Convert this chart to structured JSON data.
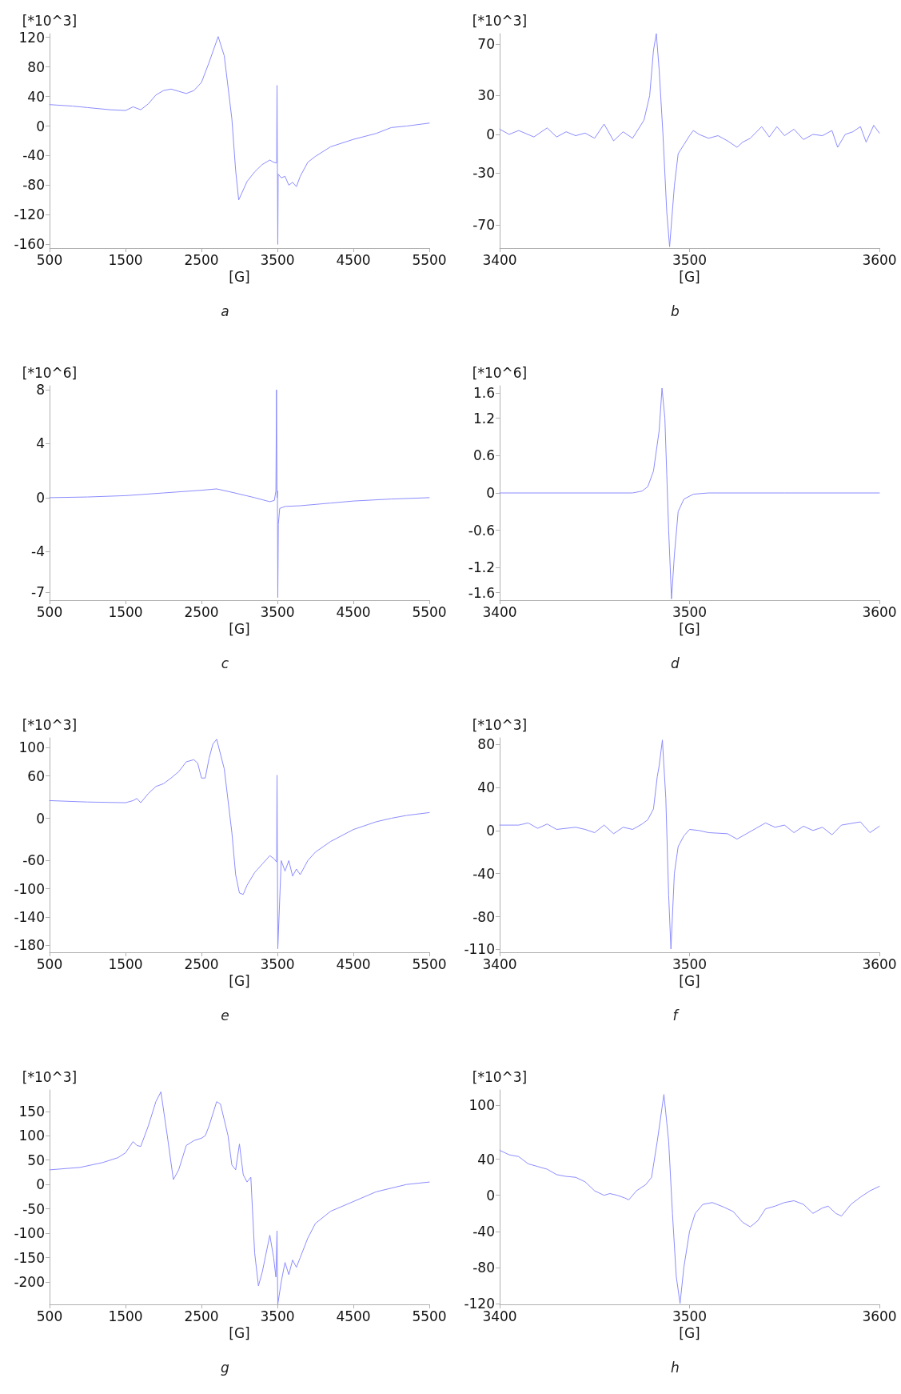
{
  "chart_data": [
    {
      "type": "line",
      "title": "a",
      "xlabel": "[G]",
      "ylabel": "[*10^3]",
      "xlim": [
        500,
        5500
      ],
      "xticks": [
        500,
        1500,
        2500,
        3500,
        4500,
        5500
      ],
      "ylim": [
        -165,
        125
      ],
      "yticks": [
        120,
        80,
        40,
        0,
        -40,
        -80,
        -120,
        -160
      ],
      "grid": false,
      "marker": "none",
      "line_style": "solid",
      "series": [
        {
          "color": "#8c8cff",
          "x": [
            500,
            800,
            1000,
            1300,
            1500,
            1600,
            1700,
            1800,
            1900,
            2000,
            2100,
            2200,
            2300,
            2400,
            2500,
            2600,
            2720,
            2800,
            2900,
            2950,
            2990,
            3100,
            3200,
            3300,
            3400,
            3450,
            3490,
            3495,
            3500,
            3505,
            3510,
            3550,
            3600,
            3650,
            3700,
            3750,
            3800,
            3900,
            4000,
            4200,
            4500,
            4800,
            5000,
            5200,
            5500
          ],
          "values": [
            29,
            27,
            25,
            22,
            21,
            26,
            22,
            30,
            42,
            48,
            50,
            47,
            44,
            48,
            59,
            86,
            121,
            95,
            10,
            -60,
            -100,
            -75,
            -62,
            -52,
            -46,
            -49,
            -50,
            55,
            -60,
            -160,
            -65,
            -70,
            -68,
            -80,
            -76,
            -82,
            -68,
            -49,
            -41,
            -28,
            -18,
            -10,
            -2,
            0,
            4
          ]
        }
      ]
    },
    {
      "type": "line",
      "title": "b",
      "xlabel": "[G]",
      "ylabel": "[*10^3]",
      "xlim": [
        3400,
        3600
      ],
      "xticks": [
        3400,
        3500,
        3600
      ],
      "ylim": [
        -88,
        78
      ],
      "yticks": [
        70,
        30,
        0,
        -30,
        -70
      ],
      "grid": false,
      "marker": "none",
      "line_style": "solid",
      "series": [
        {
          "color": "#8c8cff",
          "x": [
            3400,
            3405,
            3410,
            3418,
            3425,
            3430,
            3435,
            3440,
            3445,
            3450,
            3455,
            3460,
            3465,
            3470,
            3476,
            3479,
            3481,
            3482.5,
            3484,
            3486,
            3488,
            3489.5,
            3492,
            3494,
            3497,
            3500,
            3502,
            3505,
            3510,
            3515,
            3520,
            3525,
            3528,
            3532,
            3538,
            3542,
            3546,
            3550,
            3555,
            3560,
            3565,
            3570,
            3575,
            3578,
            3582,
            3586,
            3590,
            3593,
            3597,
            3600
          ],
          "values": [
            4,
            0,
            3,
            -2,
            5,
            -2,
            2,
            -1,
            1,
            -3,
            8,
            -5,
            2,
            -3,
            11,
            30,
            65,
            78,
            50,
            0,
            -60,
            -87,
            -40,
            -15,
            -8,
            -1,
            3,
            0,
            -3,
            -1,
            -5,
            -10,
            -6,
            -3,
            6,
            -2,
            6,
            -1,
            4,
            -4,
            0,
            -1,
            3,
            -10,
            0,
            2,
            6,
            -6,
            7,
            1
          ]
        }
      ]
    },
    {
      "type": "line",
      "title": "c",
      "xlabel": "[G]",
      "ylabel": "[*10^6]",
      "xlim": [
        500,
        5500
      ],
      "xticks": [
        500,
        1500,
        2500,
        3500,
        4500,
        5500
      ],
      "ylim": [
        -7.6,
        8.3
      ],
      "yticks": [
        8,
        4,
        0,
        -4,
        -7
      ],
      "grid": false,
      "marker": "none",
      "line_style": "solid",
      "series": [
        {
          "color": "#8c8cff",
          "x": [
            500,
            1000,
            1500,
            2000,
            2500,
            2700,
            2900,
            3200,
            3400,
            3460,
            3480,
            3488,
            3495,
            3500,
            3505,
            3512,
            3530,
            3600,
            3800,
            4200,
            4500,
            5000,
            5500
          ],
          "values": [
            0,
            0.05,
            0.15,
            0.35,
            0.55,
            0.65,
            0.4,
            0,
            -0.3,
            -0.2,
            0.5,
            8,
            0,
            0.5,
            -7.4,
            -2,
            -0.8,
            -0.65,
            -0.6,
            -0.4,
            -0.25,
            -0.1,
            0
          ]
        }
      ]
    },
    {
      "type": "line",
      "title": "d",
      "xlabel": "[G]",
      "ylabel": "[*10^6]",
      "xlim": [
        3400,
        3600
      ],
      "xticks": [
        3400,
        3500,
        3600
      ],
      "ylim": [
        -1.72,
        1.72
      ],
      "yticks": [
        1.6,
        1.2,
        0.6,
        0,
        -0.6,
        -1.2,
        -1.6
      ],
      "grid": false,
      "marker": "none",
      "line_style": "solid",
      "series": [
        {
          "color": "#8c8cff",
          "x": [
            3400,
            3440,
            3470,
            3475,
            3478,
            3481,
            3484,
            3485.5,
            3487,
            3488,
            3489,
            3490.5,
            3492,
            3494,
            3497,
            3502,
            3510,
            3550,
            3600
          ],
          "values": [
            0,
            0,
            0,
            0.03,
            0.1,
            0.35,
            1,
            1.68,
            1.2,
            0.3,
            -0.6,
            -1.7,
            -1,
            -0.3,
            -0.1,
            -0.02,
            0,
            0,
            0
          ]
        }
      ]
    },
    {
      "type": "line",
      "title": "e",
      "xlabel": "[G]",
      "ylabel": "[*10^3]",
      "xlim": [
        500,
        5500
      ],
      "xticks": [
        500,
        1500,
        2500,
        3500,
        4500,
        5500
      ],
      "ylim": [
        -190,
        114
      ],
      "yticks": [
        100,
        60,
        0,
        -60,
        -100,
        -140,
        -180
      ],
      "grid": false,
      "marker": "none",
      "line_style": "solid",
      "series": [
        {
          "color": "#8c8cff",
          "x": [
            500,
            1000,
            1500,
            1600,
            1650,
            1700,
            1800,
            1900,
            2000,
            2100,
            2200,
            2300,
            2400,
            2450,
            2500,
            2550,
            2600,
            2650,
            2700,
            2800,
            2900,
            2950,
            3000,
            3050,
            3100,
            3200,
            3300,
            3400,
            3450,
            3490,
            3495,
            3500,
            3505,
            3550,
            3600,
            3650,
            3700,
            3750,
            3800,
            3900,
            4000,
            4200,
            4500,
            4800,
            5000,
            5200,
            5500
          ],
          "values": [
            25,
            23,
            22,
            25,
            28,
            22,
            35,
            45,
            49,
            57,
            66,
            80,
            83,
            78,
            57,
            57,
            85,
            105,
            112,
            70,
            -20,
            -80,
            -106,
            -108,
            -95,
            -77,
            -65,
            -53,
            -57,
            -62,
            61,
            -60,
            -185,
            -60,
            -75,
            -60,
            -82,
            -72,
            -80,
            -60,
            -48,
            -33,
            -16,
            -5,
            0,
            4,
            8
          ]
        }
      ]
    },
    {
      "type": "line",
      "title": "f",
      "xlabel": "[G]",
      "ylabel": "[*10^3]",
      "xlim": [
        3400,
        3600
      ],
      "xticks": [
        3400,
        3500,
        3600
      ],
      "ylim": [
        -113,
        86
      ],
      "yticks": [
        80,
        40,
        0,
        -40,
        -80,
        -110
      ],
      "grid": false,
      "marker": "none",
      "line_style": "solid",
      "series": [
        {
          "color": "#8c8cff",
          "x": [
            3400,
            3410,
            3415,
            3420,
            3425,
            3430,
            3440,
            3445,
            3450,
            3455,
            3460,
            3465,
            3470,
            3475,
            3478,
            3481,
            3483,
            3484,
            3485.7,
            3487.5,
            3489,
            3490.2,
            3492,
            3494,
            3497,
            3500,
            3505,
            3510,
            3520,
            3525,
            3530,
            3535,
            3540,
            3545,
            3550,
            3555,
            3560,
            3565,
            3570,
            3575,
            3580,
            3590,
            3595,
            3600
          ],
          "values": [
            5,
            5,
            7,
            2,
            6,
            1,
            3,
            1,
            -2,
            5,
            -3,
            3,
            1,
            6,
            10,
            20,
            50,
            60,
            84,
            30,
            -60,
            -110,
            -40,
            -15,
            -5,
            1,
            0,
            -2,
            -3,
            -8,
            -3,
            2,
            7,
            3,
            5,
            -2,
            4,
            0,
            3,
            -4,
            5,
            8,
            -2,
            4
          ]
        }
      ]
    },
    {
      "type": "line",
      "title": "g",
      "xlabel": "[G]",
      "ylabel": "[*10^3]",
      "xlim": [
        500,
        5500
      ],
      "xticks": [
        500,
        1500,
        2500,
        3500,
        4500,
        5500
      ],
      "ylim": [
        -246,
        194
      ],
      "yticks": [
        150,
        100,
        50,
        0,
        -50,
        -100,
        -150,
        -200
      ],
      "grid": false,
      "marker": "none",
      "line_style": "solid",
      "series": [
        {
          "color": "#8c8cff",
          "x": [
            500,
            900,
            1200,
            1400,
            1500,
            1600,
            1650,
            1700,
            1800,
            1900,
            1966,
            2050,
            2130,
            2200,
            2300,
            2400,
            2500,
            2550,
            2600,
            2700,
            2750,
            2850,
            2900,
            2950,
            3000,
            3050,
            3100,
            3150,
            3200,
            3250,
            3300,
            3400,
            3450,
            3480,
            3495,
            3500,
            3505,
            3550,
            3600,
            3650,
            3700,
            3750,
            3800,
            3900,
            4000,
            4200,
            4500,
            4800,
            5200,
            5500
          ],
          "values": [
            30,
            35,
            45,
            55,
            65,
            88,
            80,
            78,
            120,
            170,
            190,
            100,
            10,
            30,
            80,
            90,
            95,
            100,
            120,
            170,
            165,
            100,
            40,
            30,
            83,
            20,
            5,
            15,
            -140,
            -208,
            -180,
            -104,
            -150,
            -190,
            -95,
            -180,
            -246,
            -200,
            -160,
            -185,
            -155,
            -170,
            -150,
            -110,
            -80,
            -55,
            -35,
            -15,
            0,
            5
          ]
        }
      ]
    },
    {
      "type": "line",
      "title": "h",
      "xlabel": "[G]",
      "ylabel": "[*10^3]",
      "xlim": [
        3400,
        3600
      ],
      "xticks": [
        3400,
        3500,
        3600
      ],
      "ylim": [
        -121,
        117
      ],
      "yticks": [
        100,
        40,
        0,
        -40,
        -80,
        -120
      ],
      "grid": false,
      "marker": "none",
      "line_style": "solid",
      "series": [
        {
          "color": "#8c8cff",
          "x": [
            3400,
            3405,
            3410,
            3415,
            3420,
            3425,
            3430,
            3435,
            3440,
            3445,
            3450,
            3455,
            3458,
            3462,
            3466,
            3468,
            3472,
            3477,
            3480,
            3483,
            3486.5,
            3489,
            3491,
            3493,
            3495,
            3497,
            3500,
            3503,
            3507,
            3512,
            3518,
            3523,
            3528,
            3532,
            3536,
            3540,
            3545,
            3550,
            3555,
            3560,
            3565,
            3570,
            3573,
            3577,
            3580,
            3585,
            3590,
            3595,
            3600
          ],
          "values": [
            50,
            45,
            43,
            35,
            32,
            29,
            23,
            21,
            20,
            15,
            5,
            0,
            2,
            0,
            -3,
            -5,
            5,
            12,
            20,
            60,
            112,
            60,
            -20,
            -90,
            -120,
            -80,
            -40,
            -20,
            -10,
            -8,
            -13,
            -18,
            -30,
            -35,
            -28,
            -15,
            -12,
            -8,
            -6,
            -10,
            -20,
            -14,
            -12,
            -20,
            -23,
            -10,
            -2,
            5,
            10
          ]
        }
      ]
    }
  ]
}
